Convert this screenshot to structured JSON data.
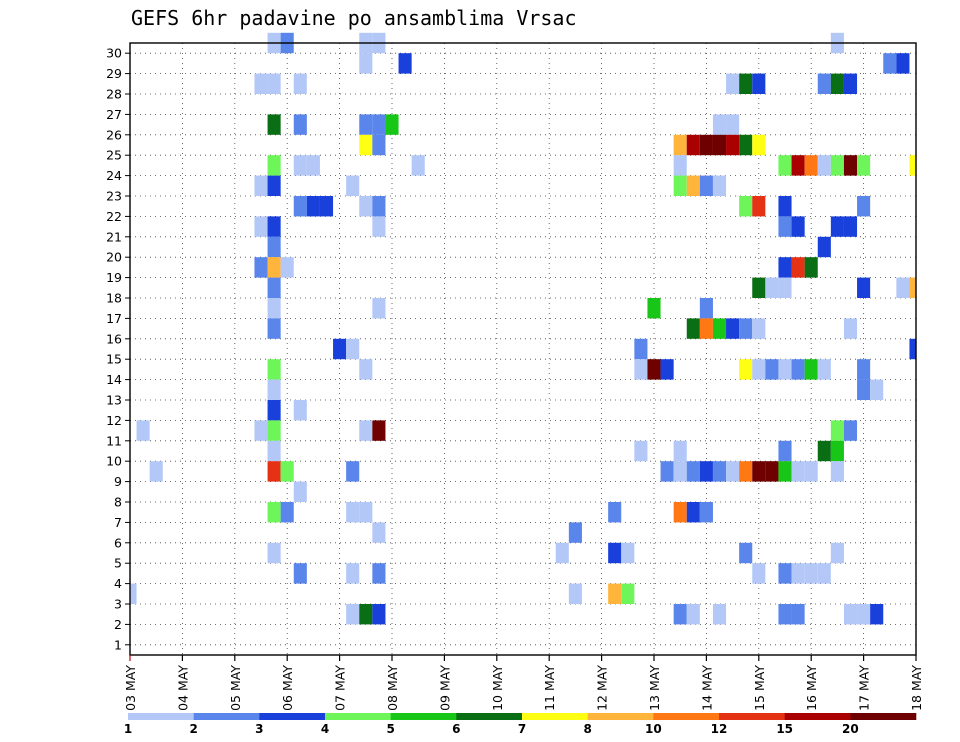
{
  "chart_data": {
    "type": "heatmap",
    "title": "GEFS 6hr padavine po ansamblima Vrsac",
    "xlabel": "",
    "ylabel": "",
    "x_tick_labels": [
      "03 MAY",
      "04 MAY",
      "05 MAY",
      "06 MAY",
      "07 MAY",
      "08 MAY",
      "09 MAY",
      "10 MAY",
      "11 MAY",
      "12 MAY",
      "13 MAY",
      "14 MAY",
      "15 MAY",
      "16 MAY",
      "17 MAY",
      "18 MAY"
    ],
    "x_range_steps_6h": [
      0,
      60
    ],
    "y_tick_labels": [
      "1",
      "2",
      "3",
      "4",
      "5",
      "6",
      "7",
      "8",
      "9",
      "10",
      "11",
      "12",
      "13",
      "14",
      "15",
      "16",
      "17",
      "18",
      "19",
      "20",
      "21",
      "22",
      "23",
      "24",
      "25",
      "26",
      "27",
      "28",
      "29",
      "30"
    ],
    "y_range": [
      0,
      30
    ],
    "grid": true,
    "legend_placement": "bottom",
    "colorbar": {
      "labels": [
        "1",
        "2",
        "3",
        "4",
        "5",
        "6",
        "7",
        "8",
        "10",
        "12",
        "15",
        "20"
      ],
      "colors": [
        "#b4c8f8",
        "#5a86ec",
        "#1a40dc",
        "#6ef55a",
        "#18c618",
        "#0a6e14",
        "#ffff14",
        "#ffb43c",
        "#ff7814",
        "#e63214",
        "#aa0000",
        "#6e0000"
      ]
    },
    "series": [
      {
        "member": 30,
        "cells": [
          [
            11,
            0
          ],
          [
            12,
            1
          ],
          [
            18,
            0
          ],
          [
            19,
            0
          ],
          [
            54,
            0
          ]
        ]
      },
      {
        "member": 29,
        "cells": [
          [
            18,
            0
          ],
          [
            21,
            2
          ],
          [
            58,
            1
          ],
          [
            59,
            2
          ]
        ]
      },
      {
        "member": 28,
        "cells": [
          [
            10,
            0
          ],
          [
            11,
            0
          ],
          [
            13,
            0
          ],
          [
            46,
            0
          ],
          [
            47,
            5
          ],
          [
            48,
            2
          ],
          [
            53,
            1
          ],
          [
            54,
            5
          ],
          [
            55,
            2
          ]
        ]
      },
      {
        "member": 26,
        "cells": [
          [
            11,
            5
          ],
          [
            13,
            1
          ],
          [
            18,
            1
          ],
          [
            19,
            1
          ],
          [
            20,
            4
          ],
          [
            45,
            0
          ],
          [
            46,
            0
          ]
        ]
      },
      {
        "member": 25,
        "cells": [
          [
            18,
            6
          ],
          [
            19,
            1
          ],
          [
            42,
            7
          ],
          [
            43,
            10
          ],
          [
            44,
            11
          ],
          [
            45,
            11
          ],
          [
            46,
            10
          ],
          [
            47,
            5
          ],
          [
            48,
            6
          ]
        ]
      },
      {
        "member": 24,
        "cells": [
          [
            11,
            3
          ],
          [
            13,
            0
          ],
          [
            14,
            0
          ],
          [
            22,
            0
          ],
          [
            42,
            0
          ],
          [
            50,
            3
          ],
          [
            51,
            10
          ],
          [
            52,
            8
          ],
          [
            53,
            0
          ],
          [
            54,
            3
          ],
          [
            55,
            11
          ],
          [
            56,
            3
          ],
          [
            60,
            6
          ]
        ]
      },
      {
        "member": 23,
        "cells": [
          [
            10,
            0
          ],
          [
            11,
            2
          ],
          [
            17,
            0
          ],
          [
            42,
            3
          ],
          [
            43,
            7
          ],
          [
            44,
            1
          ],
          [
            45,
            0
          ]
        ]
      },
      {
        "member": 22,
        "cells": [
          [
            13,
            1
          ],
          [
            14,
            2
          ],
          [
            15,
            2
          ],
          [
            18,
            0
          ],
          [
            19,
            1
          ],
          [
            47,
            3
          ],
          [
            48,
            9
          ],
          [
            50,
            2
          ],
          [
            56,
            1
          ]
        ]
      },
      {
        "member": 21,
        "cells": [
          [
            10,
            0
          ],
          [
            11,
            2
          ],
          [
            19,
            0
          ],
          [
            50,
            1
          ],
          [
            51,
            2
          ],
          [
            54,
            2
          ],
          [
            55,
            2
          ]
        ]
      },
      {
        "member": 20,
        "cells": [
          [
            11,
            1
          ],
          [
            53,
            2
          ]
        ]
      },
      {
        "member": 19,
        "cells": [
          [
            10,
            1
          ],
          [
            11,
            7
          ],
          [
            12,
            0
          ],
          [
            50,
            2
          ],
          [
            51,
            9
          ],
          [
            52,
            5
          ]
        ]
      },
      {
        "member": 18,
        "cells": [
          [
            11,
            1
          ],
          [
            48,
            5
          ],
          [
            49,
            0
          ],
          [
            50,
            0
          ],
          [
            56,
            2
          ],
          [
            59,
            0
          ],
          [
            60,
            7
          ]
        ]
      },
      {
        "member": 17,
        "cells": [
          [
            11,
            0
          ],
          [
            19,
            0
          ],
          [
            40,
            4
          ],
          [
            44,
            1
          ]
        ]
      },
      {
        "member": 16,
        "cells": [
          [
            11,
            1
          ],
          [
            43,
            5
          ],
          [
            44,
            8
          ],
          [
            45,
            4
          ],
          [
            46,
            2
          ],
          [
            47,
            1
          ],
          [
            48,
            0
          ],
          [
            55,
            0
          ]
        ]
      },
      {
        "member": 15,
        "cells": [
          [
            16,
            2
          ],
          [
            17,
            0
          ],
          [
            39,
            1
          ],
          [
            60,
            2
          ]
        ]
      },
      {
        "member": 14,
        "cells": [
          [
            11,
            3
          ],
          [
            18,
            0
          ],
          [
            39,
            0
          ],
          [
            40,
            11
          ],
          [
            41,
            2
          ],
          [
            47,
            6
          ],
          [
            48,
            0
          ],
          [
            49,
            1
          ],
          [
            50,
            0
          ],
          [
            51,
            1
          ],
          [
            52,
            4
          ],
          [
            53,
            0
          ],
          [
            56,
            1
          ]
        ]
      },
      {
        "member": 13,
        "cells": [
          [
            11,
            0
          ],
          [
            56,
            1
          ],
          [
            57,
            0
          ]
        ]
      },
      {
        "member": 12,
        "cells": [
          [
            11,
            2
          ],
          [
            13,
            0
          ]
        ]
      },
      {
        "member": 11,
        "cells": [
          [
            1,
            0
          ],
          [
            10,
            0
          ],
          [
            11,
            3
          ],
          [
            18,
            0
          ],
          [
            19,
            11
          ],
          [
            54,
            3
          ],
          [
            55,
            1
          ]
        ]
      },
      {
        "member": 10,
        "cells": [
          [
            11,
            0
          ],
          [
            39,
            0
          ],
          [
            42,
            0
          ],
          [
            50,
            1
          ],
          [
            53,
            5
          ],
          [
            54,
            4
          ]
        ]
      },
      {
        "member": 9,
        "cells": [
          [
            2,
            0
          ],
          [
            11,
            9
          ],
          [
            12,
            3
          ],
          [
            17,
            1
          ],
          [
            41,
            1
          ],
          [
            42,
            0
          ],
          [
            43,
            1
          ],
          [
            44,
            2
          ],
          [
            45,
            1
          ],
          [
            46,
            0
          ],
          [
            47,
            8
          ],
          [
            48,
            11
          ],
          [
            49,
            11
          ],
          [
            50,
            4
          ],
          [
            51,
            0
          ],
          [
            52,
            0
          ],
          [
            54,
            0
          ]
        ]
      },
      {
        "member": 8,
        "cells": [
          [
            13,
            0
          ]
        ]
      },
      {
        "member": 7,
        "cells": [
          [
            11,
            3
          ],
          [
            12,
            1
          ],
          [
            17,
            0
          ],
          [
            18,
            0
          ],
          [
            37,
            1
          ],
          [
            42,
            8
          ],
          [
            43,
            2
          ],
          [
            44,
            1
          ]
        ]
      },
      {
        "member": 6,
        "cells": [
          [
            19,
            0
          ],
          [
            34,
            1
          ]
        ]
      },
      {
        "member": 5,
        "cells": [
          [
            11,
            0
          ],
          [
            33,
            0
          ],
          [
            37,
            2
          ],
          [
            38,
            0
          ],
          [
            47,
            1
          ],
          [
            54,
            0
          ]
        ]
      },
      {
        "member": 4,
        "cells": [
          [
            13,
            1
          ],
          [
            17,
            0
          ],
          [
            19,
            1
          ],
          [
            48,
            0
          ],
          [
            50,
            1
          ],
          [
            51,
            0
          ],
          [
            52,
            0
          ],
          [
            53,
            0
          ]
        ]
      },
      {
        "member": 3,
        "cells": [
          [
            0,
            0
          ],
          [
            34,
            0
          ],
          [
            37,
            7
          ],
          [
            38,
            3
          ]
        ]
      },
      {
        "member": 2,
        "cells": [
          [
            17,
            0
          ],
          [
            18,
            5
          ],
          [
            19,
            2
          ],
          [
            42,
            1
          ],
          [
            43,
            0
          ],
          [
            45,
            0
          ],
          [
            50,
            1
          ],
          [
            51,
            1
          ],
          [
            55,
            0
          ],
          [
            56,
            0
          ],
          [
            57,
            2
          ]
        ]
      }
    ]
  }
}
